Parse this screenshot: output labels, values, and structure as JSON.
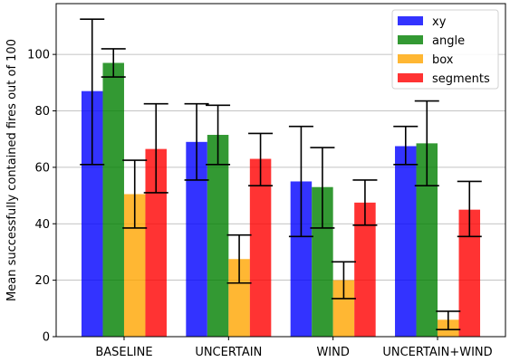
{
  "chart_data": {
    "type": "bar",
    "title": "",
    "xlabel": "",
    "ylabel": "Mean successfully contained fires out of 100",
    "categories": [
      "BASELINE",
      "UNCERTAIN",
      "WIND",
      "UNCERTAIN+WIND"
    ],
    "ylim": [
      0,
      118
    ],
    "yticks": [
      0,
      20,
      40,
      60,
      80,
      100
    ],
    "grid": "horizontal",
    "legend_position": "top-right",
    "series": [
      {
        "name": "xy",
        "color": "#0000ff",
        "values": [
          87,
          69,
          55,
          67.5
        ],
        "err_low": [
          61,
          55.5,
          35.5,
          61
        ],
        "err_high": [
          112.5,
          82.5,
          74.5,
          74.5
        ]
      },
      {
        "name": "angle",
        "color": "#008000",
        "values": [
          97,
          71.5,
          53,
          68.5
        ],
        "err_low": [
          92,
          61,
          38.5,
          53.5
        ],
        "err_high": [
          102,
          82,
          67,
          83.5
        ]
      },
      {
        "name": "box",
        "color": "#ffa500",
        "values": [
          50.5,
          27.5,
          20,
          6
        ],
        "err_low": [
          38.5,
          19,
          13.5,
          2.5
        ],
        "err_high": [
          62.5,
          36,
          26.5,
          9
        ]
      },
      {
        "name": "segments",
        "color": "#ff0000",
        "values": [
          66.5,
          63,
          47.5,
          45
        ],
        "err_low": [
          51,
          53.5,
          39.5,
          35.5
        ],
        "err_high": [
          82.5,
          72,
          55.5,
          55
        ]
      }
    ]
  }
}
